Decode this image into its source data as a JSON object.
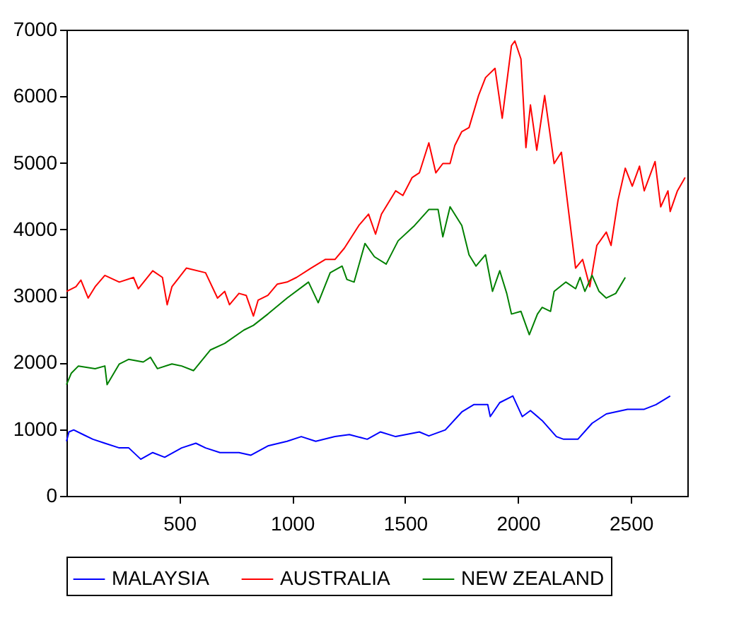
{
  "chart_data": {
    "type": "line",
    "xlim": [
      0,
      2750
    ],
    "xticks": [
      500,
      1000,
      1500,
      2000,
      2500
    ],
    "ylim": [
      0,
      7000
    ],
    "yticks": [
      0,
      1000,
      2000,
      3000,
      4000,
      5000,
      6000,
      7000
    ],
    "grid": false,
    "legend": "bottom",
    "line_style": "solid",
    "marker": "none",
    "series": [
      {
        "name": "MALAYSIA",
        "color": "#0000ff",
        "x": [
          0,
          11,
          32,
          74,
          117,
          170,
          234,
          276,
          329,
          382,
          435,
          510,
          573,
          616,
          680,
          764,
          817,
          892,
          977,
          1040,
          1104,
          1189,
          1253,
          1332,
          1391,
          1458,
          1563,
          1605,
          1678,
          1751,
          1804,
          1866,
          1877,
          1919,
          1977,
          2019,
          2055,
          2107,
          2170,
          2202,
          2265,
          2328,
          2391,
          2485,
          2559,
          2611,
          2674
        ],
        "values": [
          820,
          960,
          990,
          920,
          850,
          790,
          720,
          720,
          550,
          650,
          580,
          720,
          790,
          720,
          650,
          650,
          610,
          750,
          820,
          890,
          820,
          890,
          920,
          850,
          960,
          890,
          960,
          900,
          990,
          1260,
          1370,
          1370,
          1190,
          1400,
          1500,
          1190,
          1280,
          1130,
          890,
          850,
          850,
          1090,
          1230,
          1300,
          1300,
          1370,
          1500
        ]
      },
      {
        "name": "AUSTRALIA",
        "color": "#ff0000",
        "x": [
          0,
          42,
          64,
          96,
          127,
          170,
          234,
          297,
          318,
          382,
          425,
          446,
          467,
          531,
          616,
          669,
          701,
          722,
          764,
          796,
          828,
          849,
          892,
          934,
          977,
          1019,
          1083,
          1146,
          1189,
          1231,
          1295,
          1338,
          1369,
          1395,
          1458,
          1490,
          1531,
          1563,
          1605,
          1636,
          1667,
          1699,
          1720,
          1751,
          1783,
          1825,
          1856,
          1898,
          1930,
          1971,
          1986,
          2013,
          2035,
          2055,
          2083,
          2118,
          2160,
          2192,
          2223,
          2255,
          2286,
          2318,
          2349,
          2391,
          2412,
          2443,
          2475,
          2506,
          2538,
          2559,
          2607,
          2632,
          2664,
          2674,
          2706,
          2740
        ],
        "values": [
          3070,
          3140,
          3240,
          2970,
          3140,
          3310,
          3210,
          3280,
          3110,
          3380,
          3280,
          2870,
          3140,
          3420,
          3350,
          2970,
          3070,
          2870,
          3040,
          3010,
          2700,
          2940,
          3010,
          3180,
          3210,
          3280,
          3420,
          3550,
          3550,
          3720,
          4060,
          4230,
          3930,
          4230,
          4580,
          4510,
          4780,
          4850,
          5300,
          4850,
          4990,
          4990,
          5260,
          5470,
          5530,
          6010,
          6280,
          6420,
          5670,
          6760,
          6830,
          6560,
          5230,
          5870,
          5190,
          6010,
          4990,
          5160,
          4300,
          3420,
          3550,
          3140,
          3760,
          3960,
          3760,
          4440,
          4920,
          4650,
          4950,
          4580,
          5020,
          4340,
          4580,
          4270,
          4580,
          4780
        ]
      },
      {
        "name": "NEW ZEALAND",
        "color": "#008000",
        "x": [
          0,
          21,
          53,
          127,
          170,
          180,
          234,
          276,
          340,
          372,
          403,
          467,
          510,
          563,
          637,
          701,
          786,
          828,
          892,
          977,
          1072,
          1115,
          1168,
          1221,
          1242,
          1274,
          1322,
          1364,
          1416,
          1469,
          1542,
          1605,
          1646,
          1667,
          1699,
          1751,
          1783,
          1814,
          1856,
          1887,
          1919,
          1950,
          1971,
          2013,
          2050,
          2086,
          2107,
          2144,
          2160,
          2212,
          2255,
          2275,
          2296,
          2328,
          2359,
          2391,
          2433,
          2475
        ],
        "values": [
          1670,
          1840,
          1950,
          1910,
          1950,
          1670,
          1980,
          2050,
          2010,
          2080,
          1910,
          1980,
          1950,
          1880,
          2190,
          2290,
          2490,
          2560,
          2730,
          2970,
          3210,
          2900,
          3350,
          3450,
          3250,
          3210,
          3790,
          3590,
          3480,
          3830,
          4060,
          4300,
          4300,
          3890,
          4340,
          4060,
          3620,
          3450,
          3620,
          3070,
          3380,
          3040,
          2730,
          2770,
          2420,
          2730,
          2830,
          2770,
          3070,
          3210,
          3110,
          3280,
          3070,
          3310,
          3070,
          2970,
          3040,
          3280
        ]
      }
    ]
  }
}
